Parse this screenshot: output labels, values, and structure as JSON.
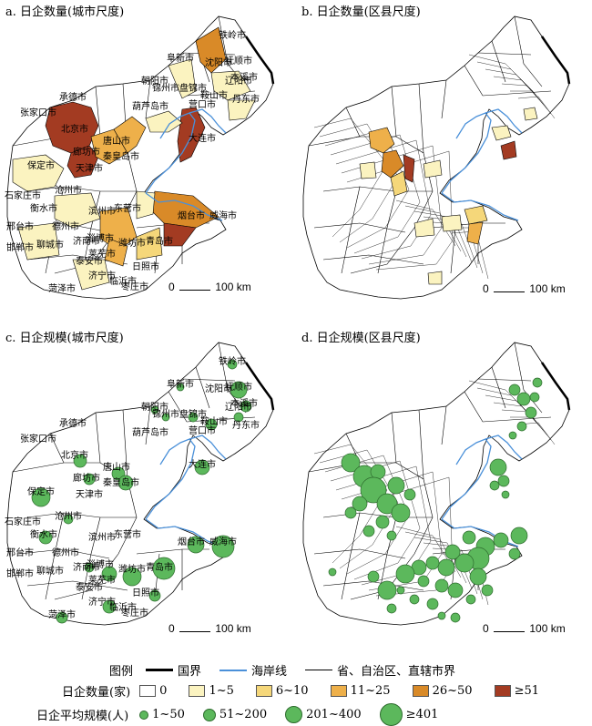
{
  "panels": {
    "a": {
      "title": "a. 日企数量(城市尺度)"
    },
    "b": {
      "title": "b. 日企数量(区县尺度)"
    },
    "c": {
      "title": "c. 日企规模(城市尺度)"
    },
    "d": {
      "title": "d. 日企规模(区县尺度)"
    }
  },
  "scale_bar": {
    "zero": "0",
    "label": "100 km"
  },
  "city_labels": [
    "张家口市",
    "承德市",
    "北京市",
    "廊坊市",
    "天津市",
    "唐山市",
    "秦皇岛市",
    "保定市",
    "沧州市",
    "石家庄市",
    "衡水市",
    "邢台市",
    "邯郸市",
    "德州市",
    "滨州市",
    "东营市",
    "济南市",
    "聊城市",
    "泰安市",
    "淄博市",
    "潍坊市",
    "烟台市",
    "威海市",
    "青岛市",
    "日照市",
    "临沂市",
    "济宁市",
    "枣庄市",
    "菏泽市",
    "莱芜市",
    "朝阳市",
    "阜新市",
    "锦州市",
    "葫芦岛市",
    "盘锦市",
    "营口市",
    "鞍山市",
    "辽阳市",
    "沈阳市",
    "铁岭市",
    "抚顺市",
    "本溪市",
    "丹东市",
    "大连市"
  ],
  "legend": {
    "title": "图例",
    "lines": [
      {
        "label": "国界",
        "color": "#000000"
      },
      {
        "label": "海岸线",
        "color": "#4a90d9"
      },
      {
        "label": "省、自治区、直辖市界",
        "color": "#000000"
      }
    ],
    "count_title": "日企数量(家)",
    "count_classes": [
      {
        "label": "0",
        "color": "#ffffff"
      },
      {
        "label": "1~5",
        "color": "#fbf3c0"
      },
      {
        "label": "6~10",
        "color": "#f5d77a"
      },
      {
        "label": "11~25",
        "color": "#eeb04a"
      },
      {
        "label": "26~50",
        "color": "#d98a28"
      },
      {
        "label": "≥51",
        "color": "#a33b22"
      }
    ],
    "size_title": "日企平均规模(人)",
    "size_classes": [
      {
        "label": "1~50"
      },
      {
        "label": "51~200"
      },
      {
        "label": "201~400"
      },
      {
        "label": "≥401"
      }
    ]
  }
}
